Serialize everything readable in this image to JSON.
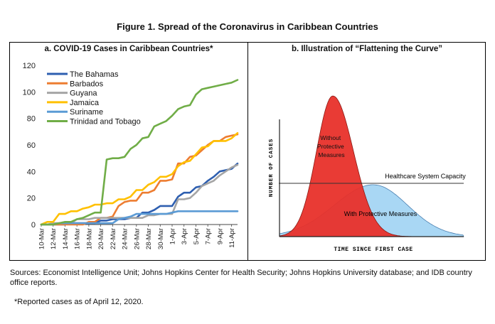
{
  "figure_title": "Figure 1. Spread of the Coronavirus in Caribbean Countries",
  "sources": "Sources: Economist Intelligence Unit; Johns Hopkins Center for Health Security; Johns Hopkins University database; and IDB country office reports.",
  "footnote": "*Reported cases as of April 12, 2020.",
  "chart_data": [
    {
      "type": "line",
      "title": "a. COVID-19 Cases in Caribbean Countries*",
      "ylim": [
        0,
        120
      ],
      "yticks": [
        0,
        20,
        40,
        60,
        80,
        100,
        120
      ],
      "x": [
        "10-Mar",
        "11-Mar",
        "12-Mar",
        "13-Mar",
        "14-Mar",
        "15-Mar",
        "16-Mar",
        "17-Mar",
        "18-Mar",
        "19-Mar",
        "20-Mar",
        "21-Mar",
        "22-Mar",
        "23-Mar",
        "24-Mar",
        "25-Mar",
        "26-Mar",
        "27-Mar",
        "28-Mar",
        "29-Mar",
        "30-Mar",
        "31-Mar",
        "1-Apr",
        "2-Apr",
        "3-Apr",
        "4-Apr",
        "5-Apr",
        "6-Apr",
        "7-Apr",
        "8-Apr",
        "9-Apr",
        "10-Apr",
        "11-Apr",
        "12-Apr"
      ],
      "xtick_labels": [
        "10-Mar",
        "12-Mar",
        "14-Mar",
        "16-Mar",
        "18-Mar",
        "20-Mar",
        "22-Mar",
        "24-Mar",
        "26-Mar",
        "28-Mar",
        "30-Mar",
        "1-Apr",
        "3-Apr",
        "5-Apr",
        "7-Apr",
        "9-Apr",
        "11-Apr"
      ],
      "legend_position": "top-left",
      "grid": false,
      "series": [
        {
          "name": "The Bahamas",
          "color": "#2e5fb0",
          "values": [
            0,
            0,
            0,
            0,
            0,
            1,
            1,
            1,
            1,
            1,
            3,
            3,
            4,
            4,
            4,
            5,
            5,
            9,
            9,
            11,
            14,
            14,
            14,
            21,
            24,
            24,
            28,
            29,
            33,
            36,
            40,
            41,
            42,
            46
          ]
        },
        {
          "name": "Barbados",
          "color": "#ed7d31",
          "values": [
            0,
            0,
            0,
            0,
            0,
            0,
            0,
            0,
            2,
            2,
            5,
            5,
            6,
            14,
            17,
            18,
            18,
            24,
            24,
            26,
            33,
            33,
            34,
            46,
            46,
            51,
            52,
            56,
            60,
            63,
            63,
            66,
            67,
            68
          ]
        },
        {
          "name": "Guyana",
          "color": "#a5a5a5",
          "values": [
            0,
            0,
            1,
            1,
            1,
            1,
            4,
            4,
            4,
            5,
            5,
            5,
            5,
            5,
            5,
            5,
            5,
            5,
            7,
            7,
            8,
            8,
            8,
            19,
            19,
            20,
            24,
            29,
            31,
            33,
            37,
            40,
            43,
            45
          ]
        },
        {
          "name": "Jamaica",
          "color": "#ffc000",
          "values": [
            0,
            2,
            2,
            8,
            8,
            10,
            10,
            12,
            13,
            15,
            15,
            16,
            16,
            19,
            19,
            21,
            26,
            26,
            30,
            32,
            36,
            36,
            38,
            44,
            47,
            48,
            53,
            58,
            59,
            63,
            63,
            63,
            65,
            69
          ]
        },
        {
          "name": "Suriname",
          "color": "#5b9bd5",
          "values": [
            0,
            0,
            0,
            1,
            1,
            1,
            1,
            1,
            1,
            1,
            1,
            1,
            1,
            4,
            5,
            6,
            8,
            8,
            8,
            8,
            8,
            8,
            9,
            10,
            10,
            10,
            10,
            10,
            10,
            10,
            10,
            10,
            10,
            10
          ]
        },
        {
          "name": "Trinidad and Tobago",
          "color": "#70ad47",
          "values": [
            0,
            0,
            0,
            1,
            2,
            2,
            4,
            5,
            7,
            9,
            9,
            49,
            50,
            50,
            51,
            57,
            60,
            65,
            66,
            74,
            76,
            78,
            82,
            87,
            89,
            90,
            98,
            102,
            103,
            104,
            105,
            106,
            107,
            109
          ]
        }
      ]
    },
    {
      "type": "area",
      "title": "b.    Illustration of “Flattening the Curve”",
      "xlabel": "TIME SINCE FIRST CASE",
      "ylabel": "NUMBER OF CASES",
      "capacity_label": "Healthcare System Capacity",
      "series": [
        {
          "name": "Without Protective Measures",
          "color": "#e8302a"
        },
        {
          "name": "With Protective Measures",
          "color": "#a9d7f4"
        }
      ]
    }
  ]
}
